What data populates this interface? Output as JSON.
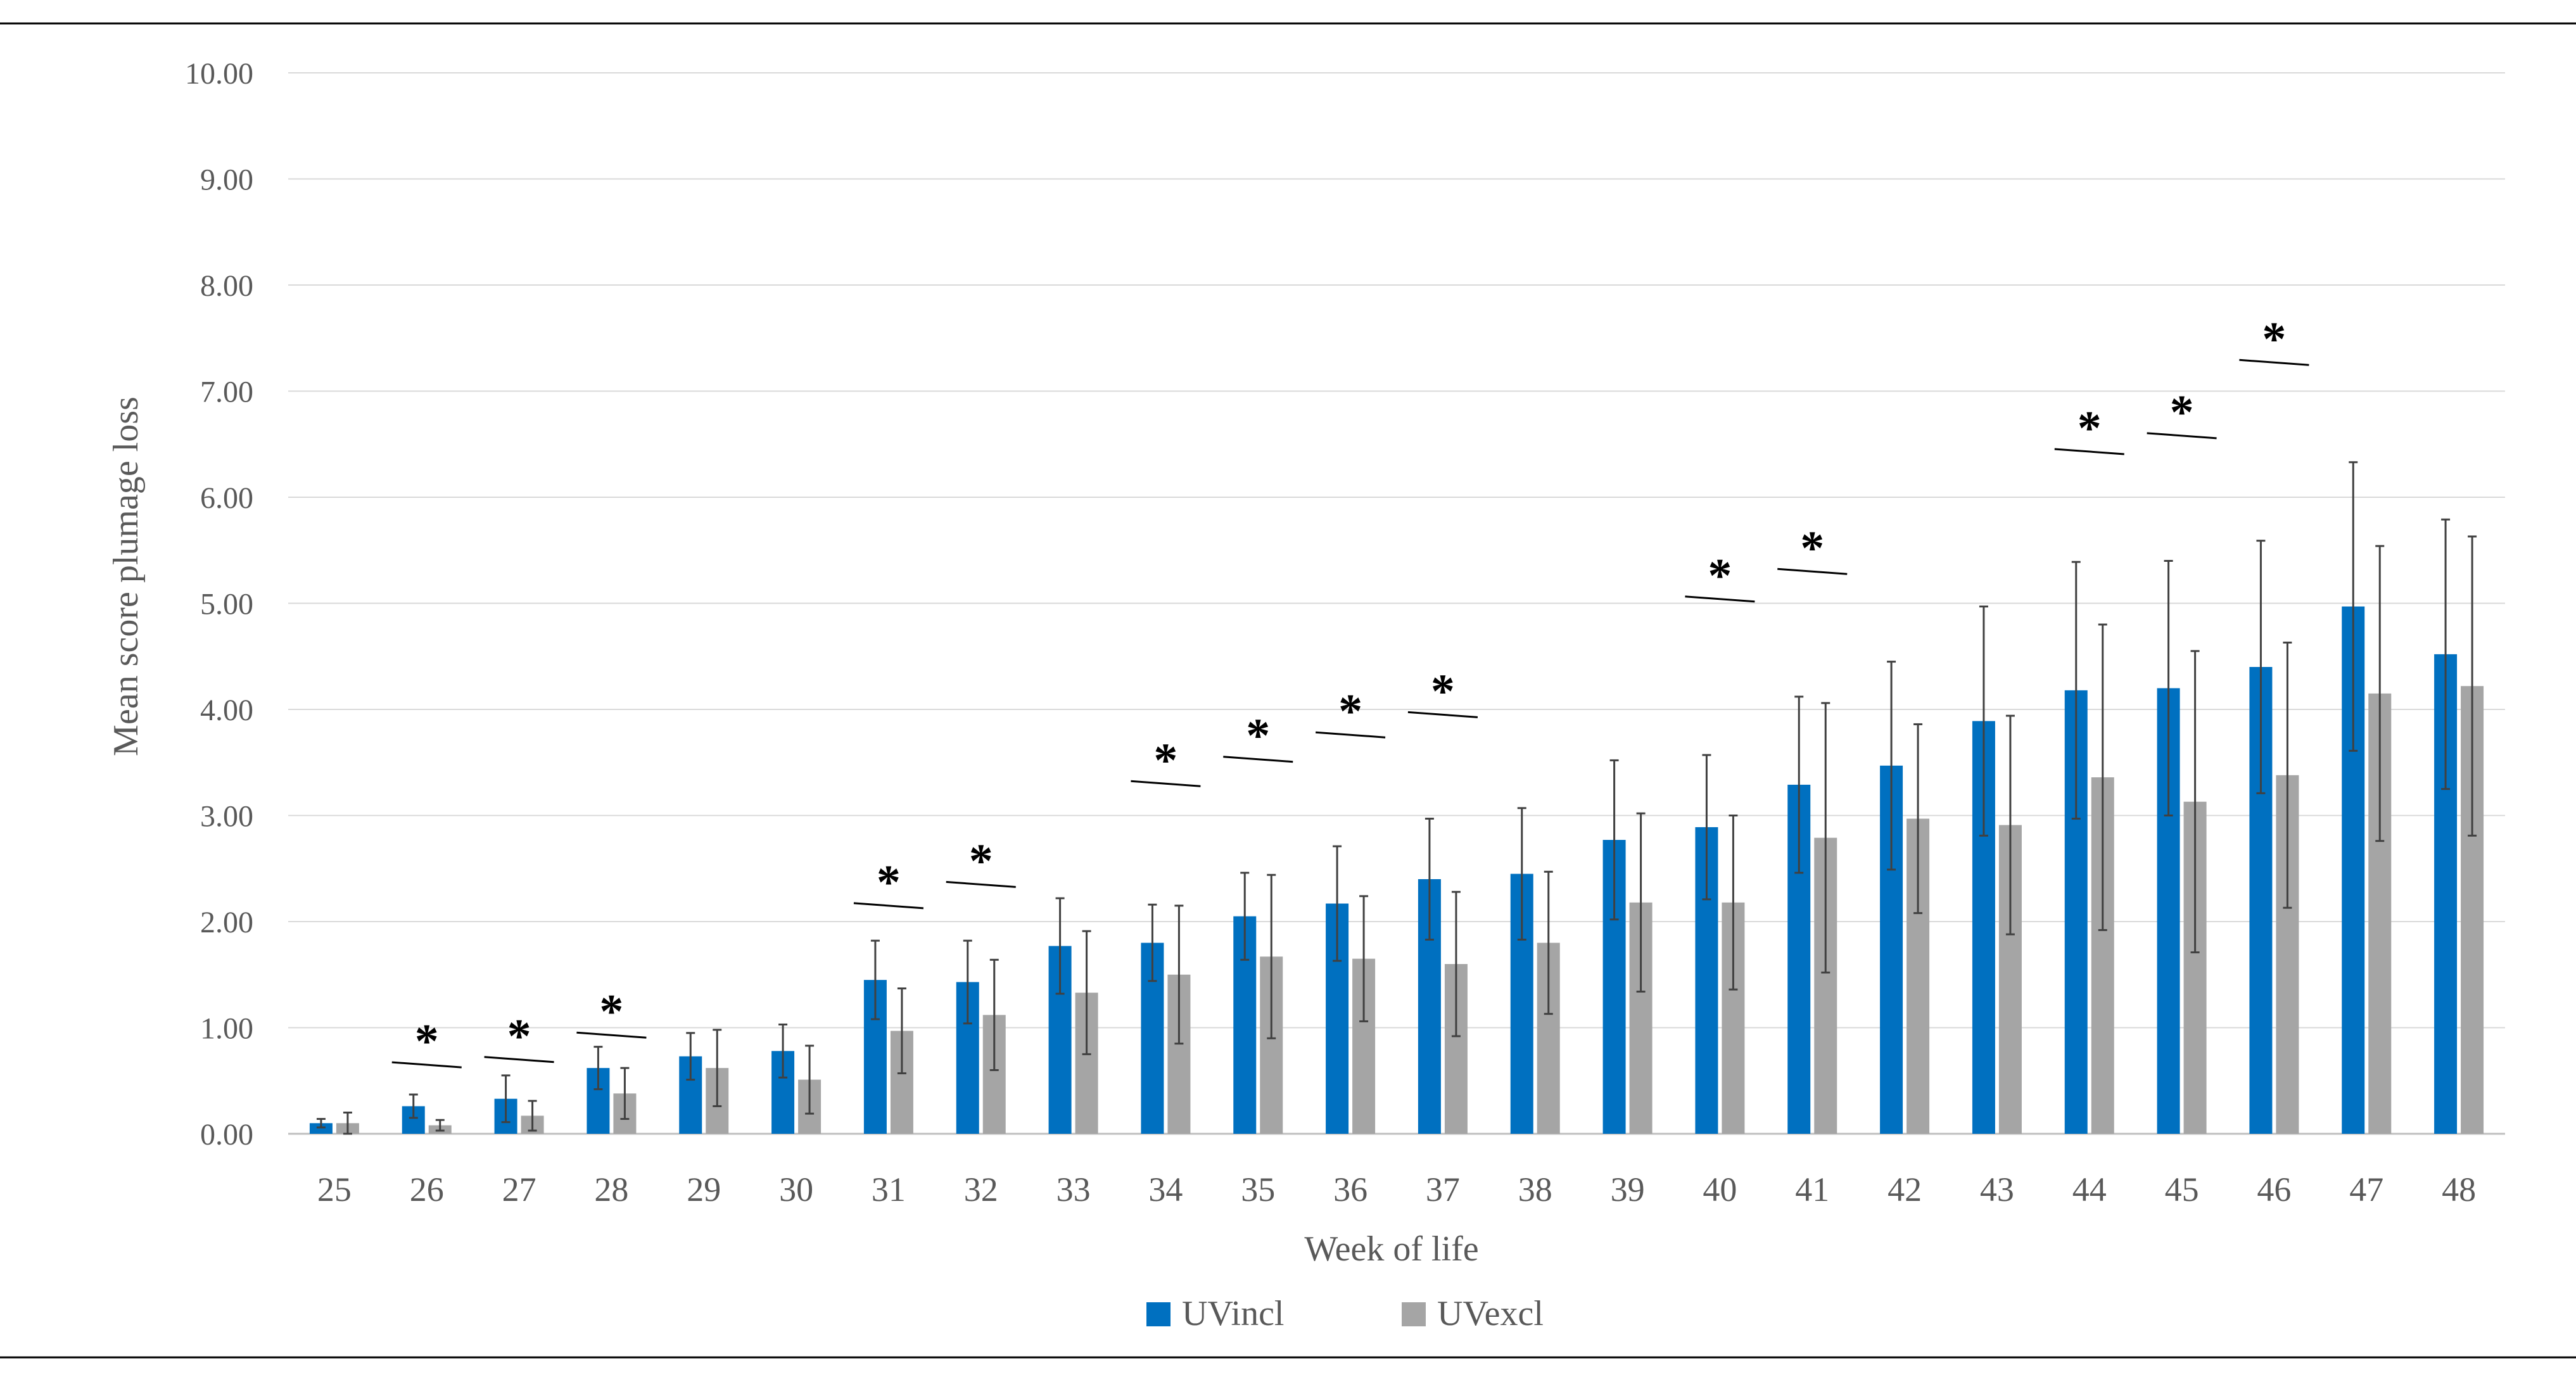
{
  "chart_data": {
    "type": "bar",
    "xlabel": "Week of life",
    "ylabel": "Mean score plumage loss",
    "ylim": [
      0,
      10
    ],
    "yticks": [
      "0.00",
      "1.00",
      "2.00",
      "3.00",
      "4.00",
      "5.00",
      "6.00",
      "7.00",
      "8.00",
      "9.00",
      "10.00"
    ],
    "grid": true,
    "legend_position": "bottom-center",
    "categories": [
      "25",
      "26",
      "27",
      "28",
      "29",
      "30",
      "31",
      "32",
      "33",
      "34",
      "35",
      "36",
      "37",
      "38",
      "39",
      "40",
      "41",
      "42",
      "43",
      "44",
      "45",
      "46",
      "47",
      "48"
    ],
    "series": [
      {
        "name": "UVincl",
        "color": "#0070C0",
        "values": [
          0.1,
          0.26,
          0.33,
          0.62,
          0.73,
          0.78,
          1.45,
          1.43,
          1.77,
          1.8,
          2.05,
          2.17,
          2.4,
          2.45,
          2.77,
          2.89,
          3.29,
          3.47,
          3.89,
          4.18,
          4.2,
          4.4,
          4.97,
          4.52
        ],
        "error": [
          0.04,
          0.11,
          0.22,
          0.2,
          0.22,
          0.25,
          0.37,
          0.39,
          0.45,
          0.36,
          0.41,
          0.54,
          0.57,
          0.62,
          0.75,
          0.68,
          0.83,
          0.98,
          1.08,
          1.21,
          1.2,
          1.19,
          1.36,
          1.27
        ]
      },
      {
        "name": "UVexcl",
        "color": "#A5A5A5",
        "values": [
          0.1,
          0.08,
          0.17,
          0.38,
          0.62,
          0.51,
          0.97,
          1.12,
          1.33,
          1.5,
          1.67,
          1.65,
          1.6,
          1.8,
          2.18,
          2.18,
          2.79,
          2.97,
          2.91,
          3.36,
          3.13,
          3.38,
          4.15,
          4.22
        ],
        "error": [
          0.1,
          0.05,
          0.14,
          0.24,
          0.36,
          0.32,
          0.4,
          0.52,
          0.58,
          0.65,
          0.77,
          0.59,
          0.68,
          0.67,
          0.84,
          0.82,
          1.27,
          0.89,
          1.03,
          1.44,
          1.42,
          1.25,
          1.39,
          1.41
        ]
      }
    ],
    "significance": {
      "marker": "*",
      "weeks": [
        "26",
        "27",
        "28",
        "31",
        "32",
        "34",
        "35",
        "36",
        "37",
        "40",
        "41",
        "44",
        "45",
        "46"
      ],
      "heights": [
        0.65,
        0.7,
        0.93,
        2.15,
        2.35,
        3.3,
        3.53,
        3.76,
        3.95,
        5.04,
        5.3,
        6.43,
        6.58,
        7.27
      ]
    }
  }
}
